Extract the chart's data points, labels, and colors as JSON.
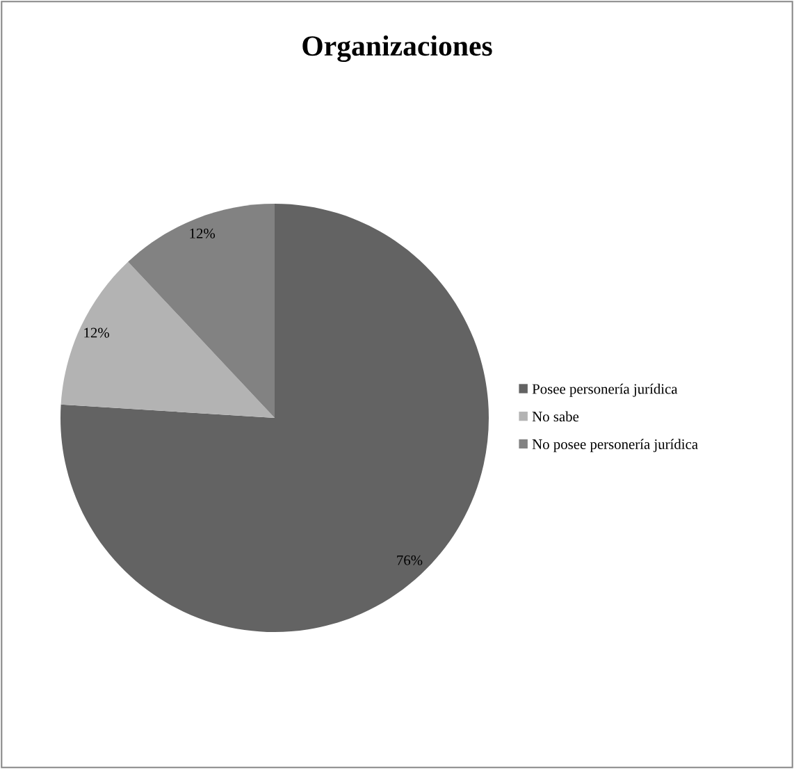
{
  "chart_data": {
    "type": "pie",
    "title": "Organizaciones",
    "categories": [
      "Posee personería jurídica",
      "No sabe",
      "No posee personería jurídica"
    ],
    "values": [
      76,
      12,
      12
    ],
    "colors": [
      "#636363",
      "#b3b3b3",
      "#828282"
    ],
    "value_labels": [
      "76%",
      "12%",
      "12%"
    ],
    "legend": "right"
  }
}
